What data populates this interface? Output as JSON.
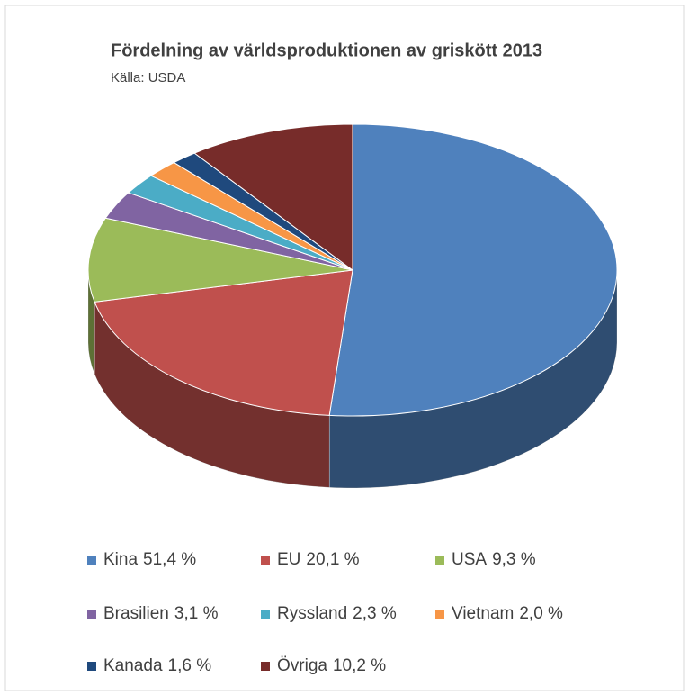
{
  "chart_data": {
    "type": "pie",
    "title": "Fördelning av världsproduktionen av griskött 2013",
    "subtitle": "Källa: USDA",
    "categories": [
      "Kina",
      "EU",
      "USA",
      "Brasilien",
      "Ryssland",
      "Vietnam",
      "Kanada",
      "Övriga"
    ],
    "values": [
      51.4,
      20.1,
      9.3,
      3.1,
      2.3,
      2.0,
      1.6,
      10.2
    ],
    "value_labels": [
      "51,4 %",
      "20,1 %",
      "9,3 %",
      "3,1 %",
      "2,3 %",
      "2,0 %",
      "1,6 %",
      "10,2 %"
    ],
    "colors": [
      "#4f81bd",
      "#c0504d",
      "#9bbb59",
      "#8064a2",
      "#4bacc6",
      "#f79646",
      "#1f497d",
      "#772c2a"
    ],
    "legend": "bottom"
  }
}
